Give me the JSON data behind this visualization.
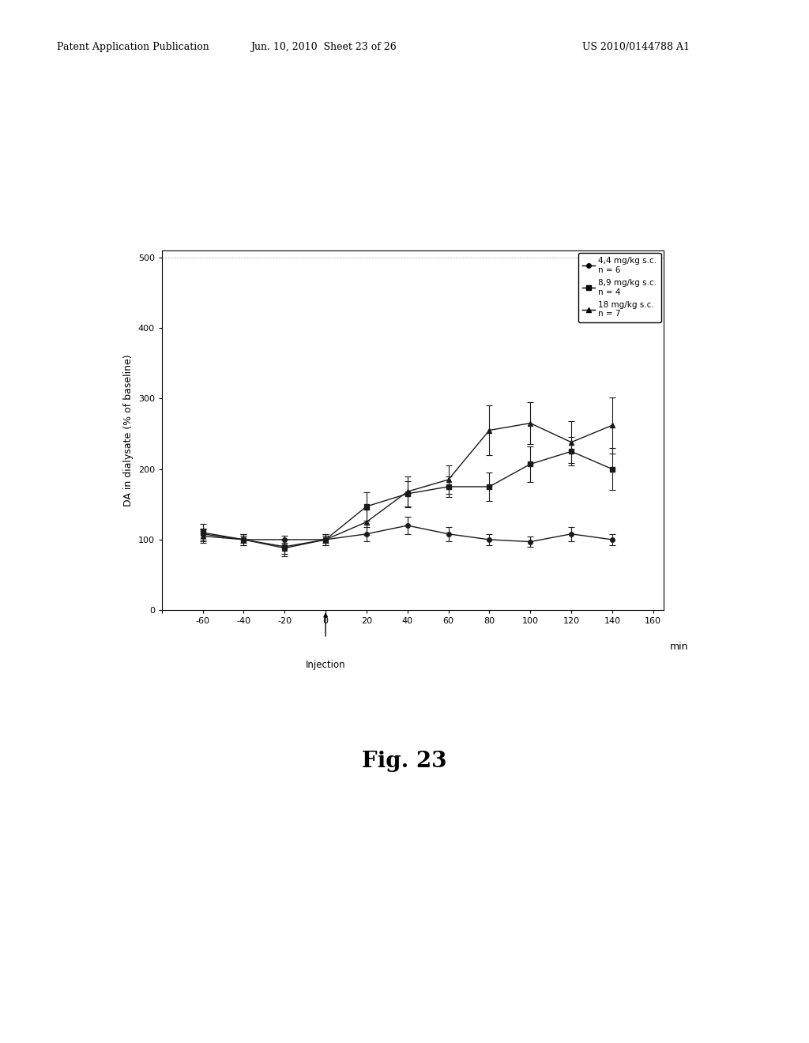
{
  "title": "Fig. 23",
  "ylabel": "DA in dialysate (% of baseline)",
  "xlabel": "min",
  "xlim": [
    -80,
    165
  ],
  "ylim": [
    0,
    510
  ],
  "xticks": [
    -80,
    -60,
    -40,
    -20,
    0,
    20,
    40,
    60,
    80,
    100,
    120,
    140,
    160
  ],
  "yticks": [
    0,
    100,
    200,
    300,
    400,
    500
  ],
  "header_left": "Patent Application Publication",
  "header_center": "Jun. 10, 2010  Sheet 23 of 26",
  "header_right": "US 2010/0144788 A1",
  "injection_label": "Injection",
  "series": [
    {
      "label": "4,4 mg/kg s.c.\nn = 6",
      "color": "#1a1a1a",
      "marker": "o",
      "x": [
        -60,
        -40,
        -20,
        0,
        20,
        40,
        60,
        80,
        100,
        120,
        140
      ],
      "y": [
        108,
        100,
        100,
        100,
        108,
        120,
        108,
        100,
        97,
        108,
        100
      ],
      "yerr": [
        8,
        5,
        5,
        5,
        10,
        12,
        10,
        8,
        7,
        10,
        8
      ]
    },
    {
      "label": "8,9 mg/kg s.c.\nn = 4",
      "color": "#1a1a1a",
      "marker": "s",
      "x": [
        -60,
        -40,
        -20,
        0,
        20,
        40,
        60,
        80,
        100,
        120,
        140
      ],
      "y": [
        110,
        100,
        90,
        100,
        147,
        165,
        175,
        175,
        207,
        225,
        200
      ],
      "yerr": [
        12,
        8,
        10,
        8,
        20,
        18,
        15,
        20,
        25,
        20,
        30
      ]
    },
    {
      "label": "18 mg/kg s.c.\nn = 7",
      "color": "#1a1a1a",
      "marker": "^",
      "x": [
        -60,
        -40,
        -20,
        0,
        20,
        40,
        60,
        80,
        100,
        120,
        140
      ],
      "y": [
        105,
        100,
        88,
        100,
        125,
        168,
        185,
        255,
        265,
        238,
        262
      ],
      "yerr": [
        10,
        8,
        12,
        8,
        18,
        22,
        20,
        35,
        30,
        30,
        40
      ]
    }
  ],
  "background_color": "#ffffff",
  "plot_bg_color": "#ffffff",
  "fig23_fontsize": 20
}
